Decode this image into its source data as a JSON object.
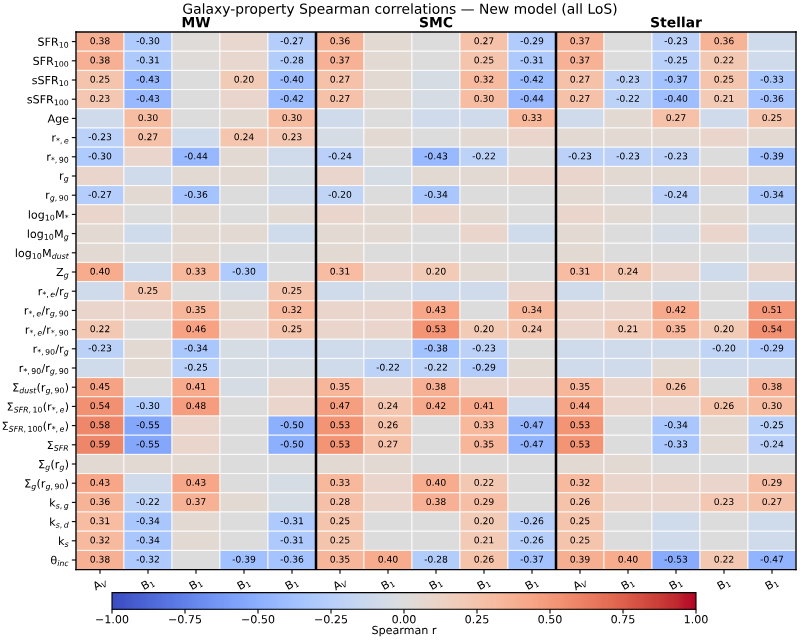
{
  "chart_data": {
    "type": "heatmap",
    "title": "Galaxy-property Spearman correlations — New model (all LoS)",
    "annotations": [
      "MW",
      "SMC",
      "Stellar"
    ],
    "categories": [
      "A$_{V}$",
      "B$_{1}$",
      "B$_{1}$",
      "B$_{1}$",
      "B$_{1}$",
      "A$_{V}$",
      "B$_{1}$",
      "B$_{1}$",
      "B$_{1}$",
      "B$_{1}$",
      "A$_{V}$",
      "B$_{1}$",
      "B$_{1}$",
      "B$_{1}$",
      "B$_{1}$"
    ],
    "y_categories": [
      "SFR$_{10}$",
      "SFR$_{100}$",
      "sSFR$_{10}$",
      "sSFR$_{100}$",
      "Age",
      "r$_{*,e}$",
      "r$_{*,90}$",
      "r$_{g}$",
      "r$_{g,90}$",
      "log$_{10}$M$_{*}$",
      "log$_{10}$M$_{g}$",
      "log$_{10}$M$_{dust}$",
      "Z$_{g}$",
      "r$_{*,e}$/r$_{g}$",
      "r$_{*,e}$/r$_{g,90}$",
      "r$_{*,e}$/r$_{*,90}$",
      "r$_{*,90}$/r$_{g}$",
      "r$_{*,90}$/r$_{g,90}$",
      "Σ$_{dust}$(r$_{g,90}$)",
      "Σ$_{SFR,10}$(r$_{*,e}$)",
      "Σ$_{SFR,100}$(r$_{*,e}$)",
      "Σ$_{SFR}$",
      "Σ$_{g}$(r$_{g}$)",
      "Σ$_{g}$(r$_{g,90}$)",
      "k$_{s,g}$",
      "k$_{s,d}$",
      "k$_{s}$",
      "θ$_{inc}$"
    ],
    "cells": [
      [
        0.38,
        -0.3,
        0.02,
        0.08,
        -0.27,
        0.36,
        0.05,
        0.0,
        0.27,
        -0.29,
        0.37,
        0.0,
        -0.23,
        0.36,
        -0.1
      ],
      [
        0.38,
        -0.31,
        0.02,
        0.08,
        -0.28,
        0.37,
        0.05,
        0.0,
        0.25,
        -0.31,
        0.37,
        0.0,
        -0.25,
        0.22,
        -0.1
      ],
      [
        0.25,
        -0.43,
        0.0,
        0.2,
        -0.4,
        0.27,
        0.05,
        -0.05,
        0.32,
        -0.42,
        0.27,
        -0.23,
        -0.37,
        0.25,
        -0.33
      ],
      [
        0.23,
        -0.43,
        0.0,
        0.1,
        -0.42,
        0.27,
        0.05,
        -0.05,
        0.3,
        -0.44,
        0.27,
        -0.22,
        -0.4,
        0.21,
        -0.36
      ],
      [
        -0.1,
        0.3,
        0.0,
        0.05,
        0.3,
        -0.1,
        0.0,
        -0.1,
        -0.1,
        0.33,
        -0.1,
        0.05,
        0.27,
        -0.1,
        0.25
      ],
      [
        -0.23,
        0.27,
        -0.1,
        0.24,
        0.23,
        -0.05,
        0.05,
        0.0,
        0.05,
        0.1,
        0.05,
        0.05,
        0.05,
        0.1,
        0.05
      ],
      [
        -0.3,
        0.1,
        -0.44,
        0.05,
        -0.1,
        -0.24,
        0.0,
        -0.43,
        -0.22,
        0.0,
        -0.23,
        -0.23,
        -0.23,
        0.0,
        -0.39
      ],
      [
        0.1,
        -0.1,
        0.05,
        0.05,
        -0.05,
        0.1,
        -0.05,
        0.05,
        0.05,
        0.1,
        0.1,
        0.05,
        0.05,
        0.1,
        0.05
      ],
      [
        -0.27,
        0.05,
        -0.36,
        0.0,
        -0.1,
        -0.2,
        0.0,
        -0.34,
        0.0,
        0.0,
        0.05,
        0.0,
        -0.24,
        0.0,
        -0.34
      ],
      [
        0.1,
        0.0,
        0.05,
        0.0,
        0.05,
        0.1,
        0.05,
        0.1,
        0.05,
        0.0,
        0.1,
        0.05,
        0.0,
        0.05,
        0.0
      ],
      [
        0.05,
        -0.1,
        0.05,
        0.05,
        -0.1,
        0.05,
        0.05,
        0.0,
        0.1,
        -0.1,
        0.05,
        0.0,
        -0.05,
        0.1,
        -0.1
      ],
      [
        0.05,
        0.0,
        0.05,
        0.0,
        0.0,
        0.05,
        0.0,
        0.0,
        0.0,
        0.0,
        0.05,
        0.0,
        0.0,
        0.0,
        -0.05
      ],
      [
        0.4,
        -0.1,
        0.33,
        -0.3,
        0.0,
        0.31,
        0.1,
        0.2,
        0.05,
        0.0,
        0.31,
        0.24,
        0.1,
        -0.1,
        0.1
      ],
      [
        -0.1,
        0.25,
        0.0,
        -0.05,
        0.25,
        -0.1,
        -0.05,
        -0.1,
        -0.1,
        0.1,
        -0.1,
        0.0,
        -0.05,
        0.0,
        -0.1
      ],
      [
        0.1,
        0.1,
        0.35,
        0.05,
        0.32,
        0.1,
        0.1,
        0.43,
        0.0,
        0.34,
        0.1,
        0.1,
        0.42,
        0.0,
        0.51
      ],
      [
        0.22,
        0.0,
        0.46,
        0.1,
        0.25,
        0.1,
        0.1,
        0.53,
        0.2,
        0.24,
        0.1,
        0.21,
        0.35,
        0.2,
        0.54
      ],
      [
        -0.23,
        0.05,
        -0.34,
        -0.05,
        -0.1,
        -0.1,
        -0.1,
        -0.38,
        -0.23,
        0.0,
        -0.1,
        -0.1,
        -0.1,
        -0.2,
        -0.29
      ],
      [
        -0.1,
        0.05,
        -0.25,
        -0.05,
        -0.05,
        -0.1,
        -0.22,
        -0.22,
        -0.29,
        0.05,
        -0.1,
        -0.1,
        0.05,
        -0.1,
        -0.1
      ],
      [
        0.45,
        0.0,
        0.41,
        -0.05,
        0.1,
        0.35,
        0.1,
        0.38,
        0.1,
        0.1,
        0.35,
        0.1,
        0.26,
        0.0,
        0.38
      ],
      [
        0.54,
        -0.3,
        0.48,
        0.0,
        0.1,
        0.47,
        0.24,
        0.42,
        0.41,
        -0.1,
        0.44,
        0.1,
        0.1,
        0.26,
        0.3
      ],
      [
        0.58,
        -0.55,
        0.1,
        0.0,
        -0.5,
        0.53,
        0.26,
        0.0,
        0.33,
        -0.47,
        0.53,
        0.0,
        -0.34,
        0.05,
        -0.25
      ],
      [
        0.59,
        -0.55,
        0.1,
        0.0,
        -0.5,
        0.53,
        0.27,
        0.0,
        0.35,
        -0.47,
        0.53,
        0.0,
        -0.33,
        0.05,
        -0.24
      ],
      [
        0.05,
        0.05,
        0.05,
        0.0,
        0.0,
        0.05,
        0.05,
        0.0,
        0.0,
        0.0,
        0.05,
        0.05,
        0.0,
        0.0,
        0.0
      ],
      [
        0.43,
        -0.1,
        0.43,
        0.0,
        -0.05,
        0.33,
        0.1,
        0.4,
        0.22,
        0.0,
        0.32,
        0.1,
        0.1,
        0.1,
        0.29
      ],
      [
        0.36,
        -0.22,
        0.37,
        0.05,
        -0.05,
        0.28,
        0.1,
        0.38,
        0.29,
        0.0,
        0.26,
        0.1,
        0.1,
        0.23,
        0.27
      ],
      [
        0.31,
        -0.34,
        0.05,
        0.0,
        -0.31,
        0.25,
        0.0,
        0.0,
        0.2,
        -0.26,
        0.25,
        0.0,
        -0.1,
        0.0,
        -0.1
      ],
      [
        0.32,
        -0.34,
        0.05,
        0.0,
        -0.31,
        0.25,
        0.0,
        0.0,
        0.21,
        -0.26,
        0.25,
        0.0,
        -0.1,
        0.0,
        -0.1
      ],
      [
        0.38,
        -0.32,
        0.0,
        -0.39,
        -0.36,
        0.35,
        0.4,
        -0.28,
        0.26,
        -0.37,
        0.39,
        0.4,
        -0.53,
        0.22,
        -0.47
      ]
    ],
    "cell_labels": [
      [
        "0.38",
        "-0.30",
        null,
        null,
        "-0.27",
        "0.36",
        null,
        null,
        "0.27",
        "-0.29",
        "0.37",
        null,
        "-0.23",
        "0.36",
        null
      ],
      [
        "0.38",
        "-0.31",
        null,
        null,
        "-0.28",
        "0.37",
        null,
        null,
        "0.25",
        "-0.31",
        "0.37",
        null,
        "-0.25",
        "0.22",
        null
      ],
      [
        "0.25",
        "-0.43",
        null,
        "0.20",
        "-0.40",
        "0.27",
        null,
        null,
        "0.32",
        "-0.42",
        "0.27",
        "-0.23",
        "-0.37",
        "0.25",
        "-0.33"
      ],
      [
        "0.23",
        "-0.43",
        null,
        null,
        "-0.42",
        "0.27",
        null,
        null,
        "0.30",
        "-0.44",
        "0.27",
        "-0.22",
        "-0.40",
        "0.21",
        "-0.36"
      ],
      [
        null,
        "0.30",
        null,
        null,
        "0.30",
        null,
        null,
        null,
        null,
        "0.33",
        null,
        null,
        "0.27",
        null,
        "0.25"
      ],
      [
        "-0.23",
        "0.27",
        null,
        "0.24",
        "0.23",
        null,
        null,
        null,
        null,
        null,
        null,
        null,
        null,
        null,
        null
      ],
      [
        "-0.30",
        null,
        "-0.44",
        null,
        null,
        "-0.24",
        null,
        "-0.43",
        "-0.22",
        null,
        "-0.23",
        "-0.23",
        "-0.23",
        null,
        "-0.39"
      ],
      [
        null,
        null,
        null,
        null,
        null,
        null,
        null,
        null,
        null,
        null,
        null,
        null,
        null,
        null,
        null
      ],
      [
        "-0.27",
        null,
        "-0.36",
        null,
        null,
        "-0.20",
        null,
        "-0.34",
        null,
        null,
        null,
        null,
        "-0.24",
        null,
        "-0.34"
      ],
      [
        null,
        null,
        null,
        null,
        null,
        null,
        null,
        null,
        null,
        null,
        null,
        null,
        null,
        null,
        null
      ],
      [
        null,
        null,
        null,
        null,
        null,
        null,
        null,
        null,
        null,
        null,
        null,
        null,
        null,
        null,
        null
      ],
      [
        null,
        null,
        null,
        null,
        null,
        null,
        null,
        null,
        null,
        null,
        null,
        null,
        null,
        null,
        null
      ],
      [
        "0.40",
        null,
        "0.33",
        "-0.30",
        null,
        "0.31",
        null,
        "0.20",
        null,
        null,
        "0.31",
        "0.24",
        null,
        null,
        null
      ],
      [
        null,
        "0.25",
        null,
        null,
        "0.25",
        null,
        null,
        null,
        null,
        null,
        null,
        null,
        null,
        null,
        null
      ],
      [
        null,
        null,
        "0.35",
        null,
        "0.32",
        null,
        null,
        "0.43",
        null,
        "0.34",
        null,
        null,
        "0.42",
        null,
        "0.51"
      ],
      [
        "0.22",
        null,
        "0.46",
        null,
        "0.25",
        null,
        null,
        "0.53",
        "0.20",
        "0.24",
        null,
        "0.21",
        "0.35",
        "0.20",
        "0.54"
      ],
      [
        "-0.23",
        null,
        "-0.34",
        null,
        null,
        null,
        null,
        "-0.38",
        "-0.23",
        null,
        null,
        null,
        null,
        "-0.20",
        "-0.29"
      ],
      [
        null,
        null,
        "-0.25",
        null,
        null,
        null,
        "-0.22",
        "-0.22",
        "-0.29",
        null,
        null,
        null,
        null,
        null,
        null
      ],
      [
        "0.45",
        null,
        "0.41",
        null,
        null,
        "0.35",
        null,
        "0.38",
        null,
        null,
        "0.35",
        null,
        "0.26",
        null,
        "0.38"
      ],
      [
        "0.54",
        "-0.30",
        "0.48",
        null,
        null,
        "0.47",
        "0.24",
        "0.42",
        "0.41",
        null,
        "0.44",
        null,
        null,
        "0.26",
        "0.30"
      ],
      [
        "0.58",
        "-0.55",
        null,
        null,
        "-0.50",
        "0.53",
        "0.26",
        null,
        "0.33",
        "-0.47",
        "0.53",
        null,
        "-0.34",
        null,
        "-0.25"
      ],
      [
        "0.59",
        "-0.55",
        null,
        null,
        "-0.50",
        "0.53",
        "0.27",
        null,
        "0.35",
        "-0.47",
        "0.53",
        null,
        "-0.33",
        null,
        "-0.24"
      ],
      [
        null,
        null,
        null,
        null,
        null,
        null,
        null,
        null,
        null,
        null,
        null,
        null,
        null,
        null,
        null
      ],
      [
        "0.43",
        null,
        "0.43",
        null,
        null,
        "0.33",
        null,
        "0.40",
        "0.22",
        null,
        "0.32",
        null,
        null,
        null,
        "0.29"
      ],
      [
        "0.36",
        "-0.22",
        "0.37",
        null,
        null,
        "0.28",
        null,
        "0.38",
        "0.29",
        null,
        "0.26",
        null,
        null,
        "0.23",
        "0.27"
      ],
      [
        "0.31",
        "-0.34",
        null,
        null,
        "-0.31",
        "0.25",
        null,
        null,
        "0.20",
        "-0.26",
        "0.25",
        null,
        null,
        null,
        null
      ],
      [
        "0.32",
        "-0.34",
        null,
        null,
        "-0.31",
        "0.25",
        null,
        null,
        "0.21",
        "-0.26",
        "0.25",
        null,
        null,
        null,
        null
      ],
      [
        "0.38",
        "-0.32",
        null,
        "-0.39",
        "-0.36",
        "0.35",
        "0.40",
        "-0.28",
        "0.26",
        "-0.37",
        "0.39",
        "0.40",
        "-0.53",
        "0.22",
        "-0.47"
      ]
    ],
    "clim": [
      -1,
      1
    ],
    "cticks": [
      {
        "value": -1,
        "label": "−1.00"
      },
      {
        "value": -0.75,
        "label": "−0.75"
      },
      {
        "value": -0.5,
        "label": "−0.50"
      },
      {
        "value": -0.25,
        "label": "−0.25"
      },
      {
        "value": 0,
        "label": "0.00"
      },
      {
        "value": 0.25,
        "label": "0.25"
      },
      {
        "value": 0.5,
        "label": "0.50"
      },
      {
        "value": 0.75,
        "label": "0.75"
      },
      {
        "value": 1,
        "label": "1.00"
      }
    ],
    "clabel": "Spearman r"
  }
}
